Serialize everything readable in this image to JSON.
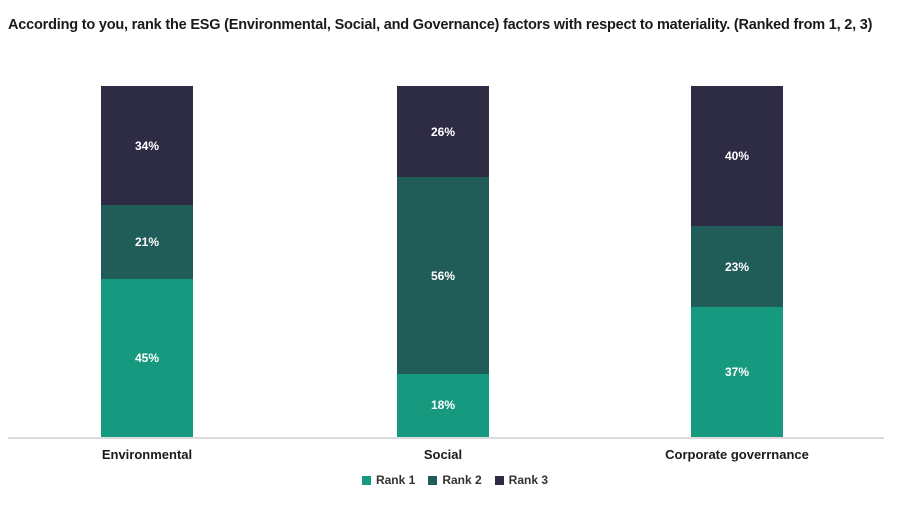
{
  "title": "According to you, rank the ESG (Environmental, Social, and Governance) factors with respect to materiality. (Ranked from 1, 2, 3)",
  "chart_data": {
    "type": "bar",
    "subtype": "stacked-100",
    "title": "According to you, rank the ESG (Environmental, Social, and Governance) factors with respect to materiality. (Ranked from 1, 2, 3)",
    "categories": [
      "Environmental",
      "Social",
      "Corporate goverrnance"
    ],
    "series": [
      {
        "name": "Rank 1",
        "color": "#17997F",
        "values": [
          45,
          18,
          37
        ]
      },
      {
        "name": "Rank 2",
        "color": "#205C58",
        "values": [
          21,
          56,
          23
        ]
      },
      {
        "name": "Rank 3",
        "color": "#2E2B45",
        "values": [
          34,
          26,
          40
        ]
      }
    ],
    "value_format": "percent",
    "data_labels": true,
    "data_label_color": "#FFFFFF",
    "xlabel": "",
    "ylabel": "",
    "ylim": [
      0,
      100
    ],
    "grid": false,
    "y_axis_visible": false,
    "legend_position": "bottom",
    "legend_labels": [
      "Rank 1",
      "Rank 2",
      "Rank 3"
    ],
    "axis_line_color": "#DCDCDC"
  }
}
